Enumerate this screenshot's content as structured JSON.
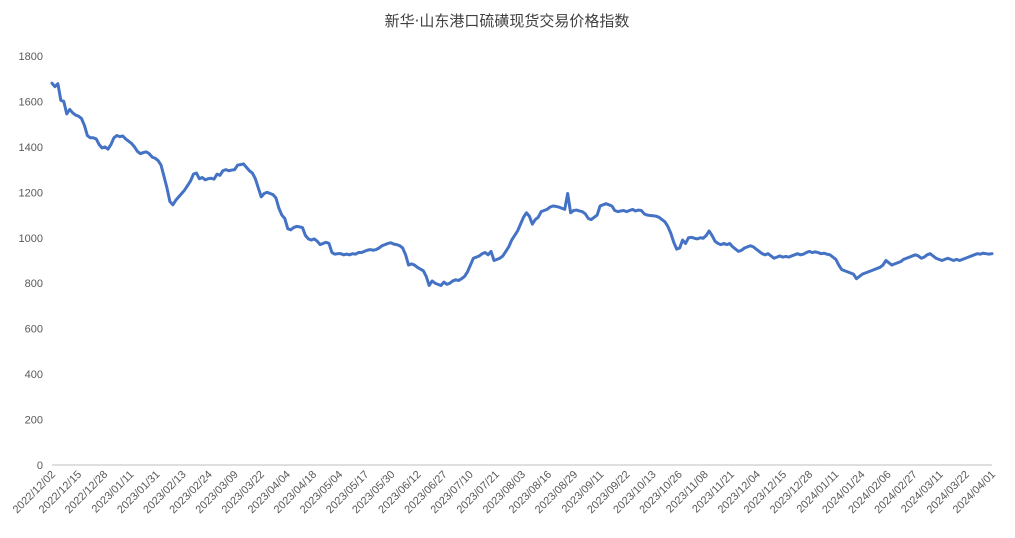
{
  "chart_data": {
    "type": "line",
    "title": "新华·山东港口硫磺现货交易价格指数",
    "xlabel": "",
    "ylabel": "",
    "ylim": [
      0,
      1800
    ],
    "y_ticks": [
      0,
      200,
      400,
      600,
      800,
      1000,
      1200,
      1400,
      1600,
      1800
    ],
    "x_tick_labels": [
      "2022/12/02",
      "2022/12/15",
      "2022/12/28",
      "2023/01/11",
      "2023/01/31",
      "2023/02/13",
      "2023/02/24",
      "2023/03/09",
      "2023/03/22",
      "2023/04/04",
      "2023/04/18",
      "2023/05/04",
      "2023/05/17",
      "2023/05/30",
      "2023/06/12",
      "2023/06/27",
      "2023/07/10",
      "2023/07/21",
      "2023/08/03",
      "2023/08/16",
      "2023/08/29",
      "2023/09/11",
      "2023/09/22",
      "2023/10/13",
      "2023/10/26",
      "2023/11/08",
      "2023/11/21",
      "2023/12/04",
      "2023/12/15",
      "2023/12/28",
      "2024/01/11",
      "2024/01/24",
      "2024/02/06",
      "2024/02/27",
      "2024/03/11",
      "2024/03/22",
      "2024/04/01"
    ],
    "grid": false,
    "legend": "none",
    "color": "#4472C4",
    "series": [
      {
        "name": "",
        "values": [
          1680,
          1665,
          1678,
          1605,
          1600,
          1545,
          1565,
          1550,
          1540,
          1535,
          1525,
          1495,
          1450,
          1440,
          1440,
          1435,
          1410,
          1395,
          1400,
          1390,
          1410,
          1440,
          1450,
          1445,
          1448,
          1435,
          1425,
          1415,
          1400,
          1380,
          1370,
          1375,
          1378,
          1370,
          1355,
          1350,
          1340,
          1320,
          1270,
          1220,
          1160,
          1145,
          1165,
          1180,
          1195,
          1210,
          1230,
          1250,
          1280,
          1285,
          1260,
          1265,
          1255,
          1260,
          1262,
          1258,
          1280,
          1275,
          1295,
          1300,
          1295,
          1298,
          1300,
          1320,
          1322,
          1325,
          1310,
          1295,
          1285,
          1260,
          1220,
          1180,
          1195,
          1200,
          1195,
          1190,
          1175,
          1130,
          1100,
          1085,
          1040,
          1035,
          1045,
          1050,
          1048,
          1045,
          1010,
          995,
          990,
          995,
          985,
          970,
          975,
          980,
          975,
          935,
          928,
          930,
          930,
          925,
          928,
          925,
          930,
          928,
          935,
          935,
          940,
          945,
          948,
          945,
          948,
          955,
          965,
          970,
          975,
          978,
          972,
          970,
          965,
          955,
          925,
          880,
          885,
          880,
          870,
          862,
          855,
          830,
          790,
          810,
          800,
          795,
          790,
          805,
          795,
          800,
          810,
          815,
          812,
          820,
          830,
          850,
          880,
          910,
          915,
          920,
          930,
          935,
          925,
          940,
          900,
          905,
          910,
          920,
          940,
          960,
          990,
          1010,
          1030,
          1060,
          1090,
          1110,
          1095,
          1060,
          1080,
          1090,
          1115,
          1120,
          1125,
          1135,
          1140,
          1138,
          1135,
          1130,
          1125,
          1195,
          1110,
          1120,
          1122,
          1118,
          1115,
          1105,
          1085,
          1080,
          1090,
          1100,
          1140,
          1145,
          1150,
          1145,
          1140,
          1120,
          1115,
          1118,
          1120,
          1115,
          1120,
          1125,
          1118,
          1122,
          1120,
          1105,
          1100,
          1098,
          1097,
          1095,
          1090,
          1080,
          1070,
          1050,
          1020,
          980,
          950,
          955,
          990,
          975,
          1000,
          1002,
          998,
          995,
          1000,
          998,
          1010,
          1030,
          1010,
          985,
          975,
          970,
          975,
          970,
          975,
          960,
          950,
          940,
          945,
          955,
          960,
          965,
          960,
          950,
          940,
          930,
          925,
          930,
          920,
          910,
          915,
          920,
          915,
          918,
          915,
          920,
          925,
          930,
          925,
          928,
          935,
          940,
          935,
          938,
          935,
          930,
          932,
          928,
          925,
          915,
          905,
          880,
          860,
          855,
          850,
          845,
          840,
          820,
          830,
          840,
          845,
          850,
          855,
          860,
          865,
          870,
          880,
          900,
          890,
          880,
          885,
          890,
          895,
          905,
          910,
          915,
          920,
          925,
          920,
          910,
          915,
          925,
          930,
          920,
          910,
          905,
          900,
          905,
          910,
          905,
          900,
          905,
          900,
          905,
          910,
          915,
          920,
          925,
          930,
          928,
          932,
          930,
          928,
          930
        ]
      }
    ]
  }
}
